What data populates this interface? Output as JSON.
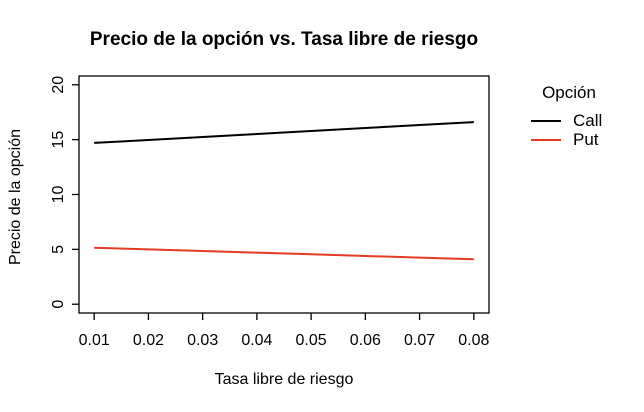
{
  "chart_data": {
    "type": "line",
    "title": "Precio de la opción vs. Tasa libre de riesgo",
    "xlabel": "Tasa libre de riesgo",
    "ylabel": "Precio de la opción",
    "x": [
      0.01,
      0.02,
      0.03,
      0.04,
      0.05,
      0.06,
      0.07,
      0.08
    ],
    "x_tick_labels": [
      "0.01",
      "0.02",
      "0.03",
      "0.04",
      "0.05",
      "0.06",
      "0.07",
      "0.08"
    ],
    "y_tick_labels": [
      "0",
      "5",
      "10",
      "15",
      "20"
    ],
    "xlim": [
      0.01,
      0.08
    ],
    "ylim": [
      0,
      20
    ],
    "grid": false,
    "series": [
      {
        "name": "Call",
        "color": "#000000",
        "values": [
          14.7,
          14.97,
          15.24,
          15.51,
          15.79,
          16.06,
          16.33,
          16.6
        ]
      },
      {
        "name": "Put",
        "color": "#e23c23",
        "values": [
          5.15,
          5.0,
          4.85,
          4.7,
          4.55,
          4.4,
          4.25,
          4.1
        ]
      }
    ],
    "legend": {
      "title": "Opción",
      "position": "right"
    },
    "colors": {
      "foreground": "#000000",
      "background": "#ffffff"
    }
  }
}
